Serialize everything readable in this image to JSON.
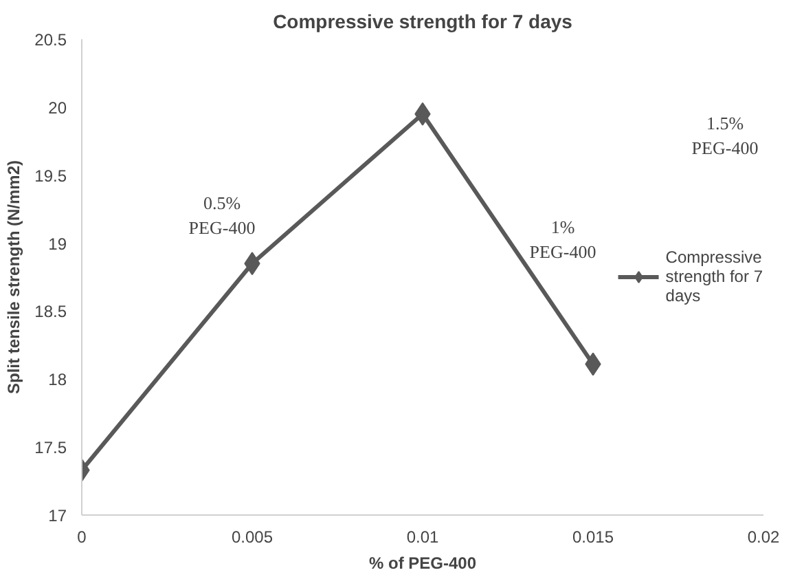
{
  "chart_data": {
    "type": "line",
    "title": "Compressive strength for 7 days",
    "xlabel": "% of PEG-400",
    "ylabel": "Split tensile strength (N/mm2)",
    "x": [
      0,
      0.005,
      0.01,
      0.015
    ],
    "series": [
      {
        "name": "Compressive strength for 7 days",
        "color": "#595959",
        "values": [
          17.33,
          18.85,
          19.95,
          18.11
        ]
      }
    ],
    "xlim": [
      0,
      0.02
    ],
    "xticks": [
      0,
      0.005,
      0.01,
      0.015,
      0.02
    ],
    "ylim": [
      17,
      20.5
    ],
    "yticks": [
      17,
      17.5,
      18,
      18.5,
      19,
      19.5,
      20,
      20.5
    ],
    "marker": "diamond",
    "line_style": "solid",
    "grid": false,
    "legend": "right",
    "annotations": [
      {
        "text": "0.5% PEG-400",
        "x": 0.005,
        "y": 18.95
      },
      {
        "text": "1% PEG-400",
        "x": 0.0125,
        "y": 19.03
      },
      "1.5% PEG-400"
    ]
  }
}
